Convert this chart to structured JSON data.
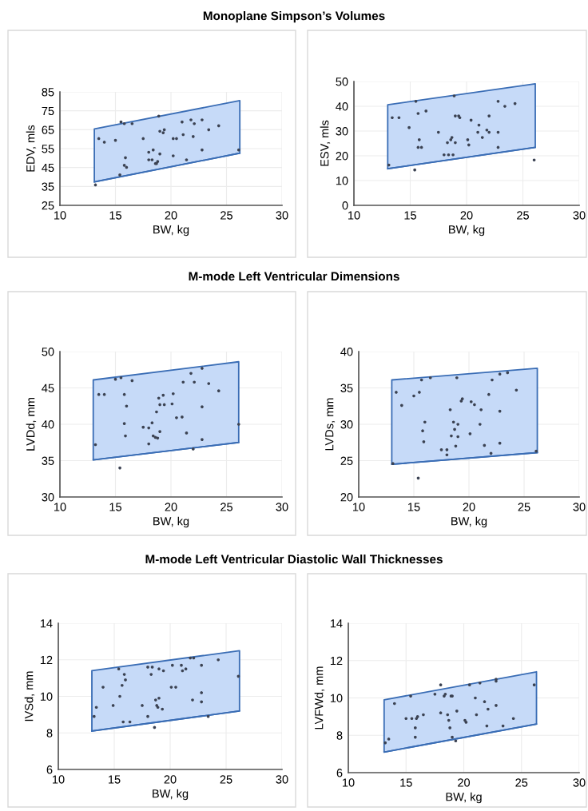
{
  "chart_data": [
    {
      "type": "scatter",
      "title": "Monoplane Simpson’s Volumes",
      "xlabel": "BW, kg",
      "ylabel": "EDV, mls",
      "xlim": [
        10,
        30
      ],
      "xticks": [
        10,
        15,
        20,
        25,
        30
      ],
      "ylim": [
        25,
        85
      ],
      "yticks": [
        25,
        35,
        45,
        55,
        65,
        75,
        85
      ],
      "grid": true,
      "series": [
        {
          "type": "line",
          "color": "#3a6db5",
          "x": [
            13.1,
            26.2
          ],
          "values": [
            37.4,
            52.6
          ]
        },
        {
          "type": "area",
          "color": "#c6daf8",
          "x": [
            13.1,
            26.2
          ],
          "values": [
            65.4,
            80.4
          ]
        },
        {
          "marker": "circle",
          "color": "#3b4252",
          "x": [
            13.2,
            15.5,
            15.8,
            16.5,
            18.9,
            13.5,
            14.0,
            15.0,
            17.5,
            19.0,
            19.3,
            19.4,
            20.2,
            20.5,
            21.0,
            21.1,
            21.8,
            22.1,
            22.0,
            22.8,
            23.4,
            24.3,
            22.8,
            26.1,
            18.0,
            18.4,
            19.0,
            20.2,
            21.4,
            18.0,
            18.3,
            18.8,
            18.6,
            18.7,
            15.9,
            15.8,
            16.0,
            15.4
          ],
          "values": [
            35.8,
            69.1,
            68.2,
            68.2,
            72.2,
            60.3,
            58.4,
            59.4,
            60.3,
            64.2,
            63.4,
            65.0,
            60.3,
            60.3,
            69.1,
            62.4,
            70.2,
            68.2,
            61.4,
            70.2,
            65.0,
            67.1,
            54.3,
            54.3,
            53.1,
            54.3,
            52.2,
            51.2,
            49.1,
            49.1,
            49.1,
            48.2,
            47.1,
            47.1,
            50.2,
            46.2,
            45.1,
            41.1
          ]
        }
      ]
    },
    {
      "type": "scatter",
      "xlabel": "BW, kg",
      "ylabel": "ESV, mls",
      "xlim": [
        10,
        30
      ],
      "xticks": [
        10,
        15,
        20,
        25,
        30
      ],
      "ylim": [
        0,
        50
      ],
      "yticks": [
        0,
        10,
        20,
        30,
        40,
        50
      ],
      "grid": true,
      "series": [
        {
          "type": "line",
          "color": "#3a6db5",
          "x": [
            13.0,
            26.1
          ],
          "values": [
            14.8,
            23.4
          ]
        },
        {
          "type": "area",
          "color": "#c6daf8",
          "x": [
            13.0,
            26.1
          ],
          "values": [
            40.6,
            49.1
          ]
        },
        {
          "marker": "circle",
          "color": "#3b4252",
          "x": [
            13.1,
            15.4,
            26.0,
            13.4,
            14.0,
            14.9,
            15.5,
            15.7,
            16.4,
            15.8,
            15.7,
            16.0,
            17.5,
            18.9,
            18.0,
            18.4,
            18.8,
            18.3,
            18.6,
            18.7,
            19.0,
            19.0,
            19.3,
            19.4,
            20.4,
            20.1,
            20.2,
            21.1,
            21.0,
            21.4,
            21.8,
            22.0,
            22.0,
            22.8,
            22.8,
            22.8,
            23.4,
            24.3
          ],
          "values": [
            16.3,
            14.3,
            18.3,
            35.4,
            35.4,
            31.4,
            42.0,
            37.1,
            38.1,
            26.5,
            23.4,
            23.4,
            29.5,
            44.2,
            20.4,
            20.4,
            20.4,
            25.3,
            26.5,
            27.4,
            25.3,
            36.1,
            36.1,
            35.4,
            34.4,
            26.5,
            24.4,
            32.4,
            29.5,
            27.4,
            30.4,
            29.5,
            36.1,
            42.0,
            29.5,
            23.4,
            40.0,
            41.1
          ]
        }
      ]
    },
    {
      "type": "scatter",
      "title": "M-mode Left Ventricular Dimensions",
      "xlabel": "BW, kg",
      "ylabel": "LVDd, mm",
      "xlim": [
        10,
        30
      ],
      "xticks": [
        10,
        15,
        20,
        25,
        30
      ],
      "ylim": [
        30,
        50
      ],
      "yticks": [
        30,
        35,
        40,
        45,
        50
      ],
      "grid": true,
      "series": [
        {
          "type": "line",
          "color": "#3a6db5",
          "x": [
            13.0,
            26.1
          ],
          "values": [
            35.1,
            37.5
          ]
        },
        {
          "type": "area",
          "color": "#c6daf8",
          "x": [
            13.0,
            26.1
          ],
          "values": [
            46.1,
            48.6
          ]
        },
        {
          "marker": "circle",
          "color": "#3b4252",
          "x": [
            13.2,
            13.5,
            14.0,
            15.0,
            15.5,
            16.5,
            15.8,
            16.0,
            15.8,
            15.9,
            15.4,
            17.5,
            18.0,
            18.0,
            18.3,
            18.4,
            18.6,
            18.8,
            19.0,
            18.7,
            18.9,
            19.3,
            19.0,
            19.4,
            20.1,
            20.2,
            20.5,
            21.0,
            21.1,
            21.4,
            21.8,
            22.1,
            22.0,
            22.8,
            22.8,
            22.8,
            23.4,
            24.3,
            26.1
          ],
          "values": [
            37.2,
            44.1,
            44.1,
            46.2,
            46.4,
            46.0,
            44.1,
            42.5,
            40.1,
            38.4,
            34.0,
            39.6,
            39.5,
            37.3,
            40.2,
            38.4,
            38.2,
            38.1,
            39.0,
            41.7,
            43.6,
            44.0,
            42.7,
            42.7,
            42.8,
            44.2,
            40.9,
            41.0,
            45.8,
            38.8,
            47.0,
            45.8,
            36.6,
            47.7,
            42.4,
            37.9,
            45.6,
            44.6,
            40.0
          ]
        }
      ]
    },
    {
      "type": "scatter",
      "xlabel": "BW, kg",
      "ylabel": "LVDs, mm",
      "xlim": [
        10,
        30
      ],
      "xticks": [
        10,
        15,
        20,
        25,
        30
      ],
      "ylim": [
        20,
        40
      ],
      "yticks": [
        20,
        25,
        30,
        35,
        40
      ],
      "grid": true,
      "series": [
        {
          "type": "line",
          "color": "#3a6db5",
          "x": [
            13.0,
            26.2
          ],
          "values": [
            24.5,
            26.1
          ]
        },
        {
          "type": "area",
          "color": "#c6daf8",
          "x": [
            13.0,
            26.2
          ],
          "values": [
            36.1,
            37.7
          ]
        },
        {
          "marker": "circle",
          "color": "#3b4252",
          "x": [
            13.1,
            13.4,
            13.9,
            15.0,
            15.5,
            15.7,
            16.5,
            16.0,
            15.8,
            15.9,
            15.4,
            17.5,
            18.0,
            18.0,
            18.3,
            18.4,
            18.6,
            18.7,
            19.0,
            19.0,
            18.8,
            18.9,
            19.3,
            19.4,
            20.1,
            20.2,
            20.5,
            21.0,
            21.1,
            21.4,
            21.8,
            22.0,
            22.1,
            22.8,
            22.8,
            22.8,
            23.5,
            24.3,
            26.1
          ],
          "values": [
            24.6,
            34.4,
            32.6,
            33.9,
            34.4,
            36.1,
            36.4,
            30.3,
            29.1,
            27.6,
            22.6,
            26.5,
            26.5,
            25.8,
            32.0,
            28.4,
            30.3,
            29.3,
            30.0,
            28.3,
            27.0,
            36.4,
            33.2,
            33.5,
            28.7,
            33.1,
            32.7,
            30.0,
            32.0,
            27.1,
            34.1,
            26.0,
            36.1,
            36.9,
            31.8,
            27.4,
            37.1,
            34.7,
            26.3
          ]
        }
      ]
    },
    {
      "type": "scatter",
      "title": "M-mode Left Ventricular Diastolic Wall Thicknesses",
      "xlabel": "BW, kg",
      "ylabel": "IVSd, mm",
      "xlim": [
        10,
        30
      ],
      "xticks": [
        10,
        15,
        20,
        25,
        30
      ],
      "ylim": [
        6,
        14
      ],
      "yticks": [
        6,
        8,
        10,
        12,
        14
      ],
      "grid": true,
      "series": [
        {
          "type": "line",
          "color": "#3a6db5",
          "x": [
            13.0,
            26.2
          ],
          "values": [
            8.1,
            9.2
          ]
        },
        {
          "type": "area",
          "color": "#c6daf8",
          "x": [
            13.0,
            26.2
          ],
          "values": [
            11.4,
            12.5
          ]
        },
        {
          "marker": "circle",
          "color": "#3b4252",
          "x": [
            13.2,
            13.4,
            14.0,
            14.9,
            15.4,
            15.5,
            15.7,
            15.9,
            16.0,
            15.8,
            16.4,
            17.5,
            18.0,
            18.4,
            18.3,
            18.0,
            18.6,
            18.7,
            19.0,
            18.8,
            18.9,
            19.3,
            19.0,
            19.4,
            20.1,
            20.5,
            20.2,
            21.0,
            21.1,
            21.4,
            21.8,
            22.1,
            22.0,
            22.8,
            22.8,
            22.8,
            23.4,
            24.3,
            26.1
          ],
          "values": [
            8.9,
            9.4,
            10.5,
            9.5,
            11.5,
            10.0,
            10.6,
            11.2,
            10.9,
            8.6,
            8.6,
            9.5,
            11.6,
            11.6,
            11.2,
            8.9,
            8.3,
            9.8,
            9.9,
            9.5,
            9.4,
            9.3,
            11.5,
            11.4,
            10.5,
            10.5,
            11.7,
            11.7,
            11.4,
            11.5,
            12.1,
            12.1,
            9.8,
            11.7,
            10.2,
            9.7,
            8.9,
            12.0,
            11.1
          ]
        }
      ]
    },
    {
      "type": "scatter",
      "xlabel": "BW, kg",
      "ylabel": "LVFWd, mm",
      "xlim": [
        10,
        30
      ],
      "xticks": [
        10,
        15,
        20,
        25,
        30
      ],
      "ylim": [
        6,
        14
      ],
      "yticks": [
        6,
        8,
        10,
        12,
        14
      ],
      "grid": true,
      "series": [
        {
          "type": "line",
          "color": "#3a6db5",
          "x": [
            13.1,
            26.3
          ],
          "values": [
            7.1,
            8.6
          ]
        },
        {
          "type": "area",
          "color": "#c6daf8",
          "x": [
            13.1,
            26.3
          ],
          "values": [
            9.9,
            11.4
          ]
        },
        {
          "marker": "circle",
          "color": "#3b4252",
          "x": [
            13.2,
            13.5,
            14.0,
            15.0,
            15.5,
            15.9,
            16.0,
            16.5,
            15.8,
            15.8,
            15.4,
            17.5,
            18.0,
            18.0,
            18.3,
            18.4,
            18.6,
            18.7,
            18.8,
            18.9,
            19.0,
            19.0,
            19.3,
            19.4,
            20.1,
            20.2,
            20.5,
            21.0,
            21.1,
            21.4,
            21.8,
            22.0,
            22.1,
            22.8,
            22.8,
            22.8,
            23.4,
            24.3,
            26.1
          ],
          "values": [
            7.6,
            7.8,
            9.7,
            8.9,
            8.9,
            8.9,
            9.0,
            9.1,
            8.4,
            7.9,
            10.1,
            10.2,
            10.7,
            9.2,
            10.1,
            10.2,
            9.1,
            8.8,
            8.4,
            10.1,
            10.1,
            7.9,
            7.7,
            9.3,
            8.8,
            8.7,
            10.7,
            10.0,
            9.1,
            10.8,
            9.8,
            8.5,
            9.4,
            11.0,
            10.9,
            9.6,
            8.5,
            8.9,
            10.7
          ]
        }
      ]
    }
  ]
}
